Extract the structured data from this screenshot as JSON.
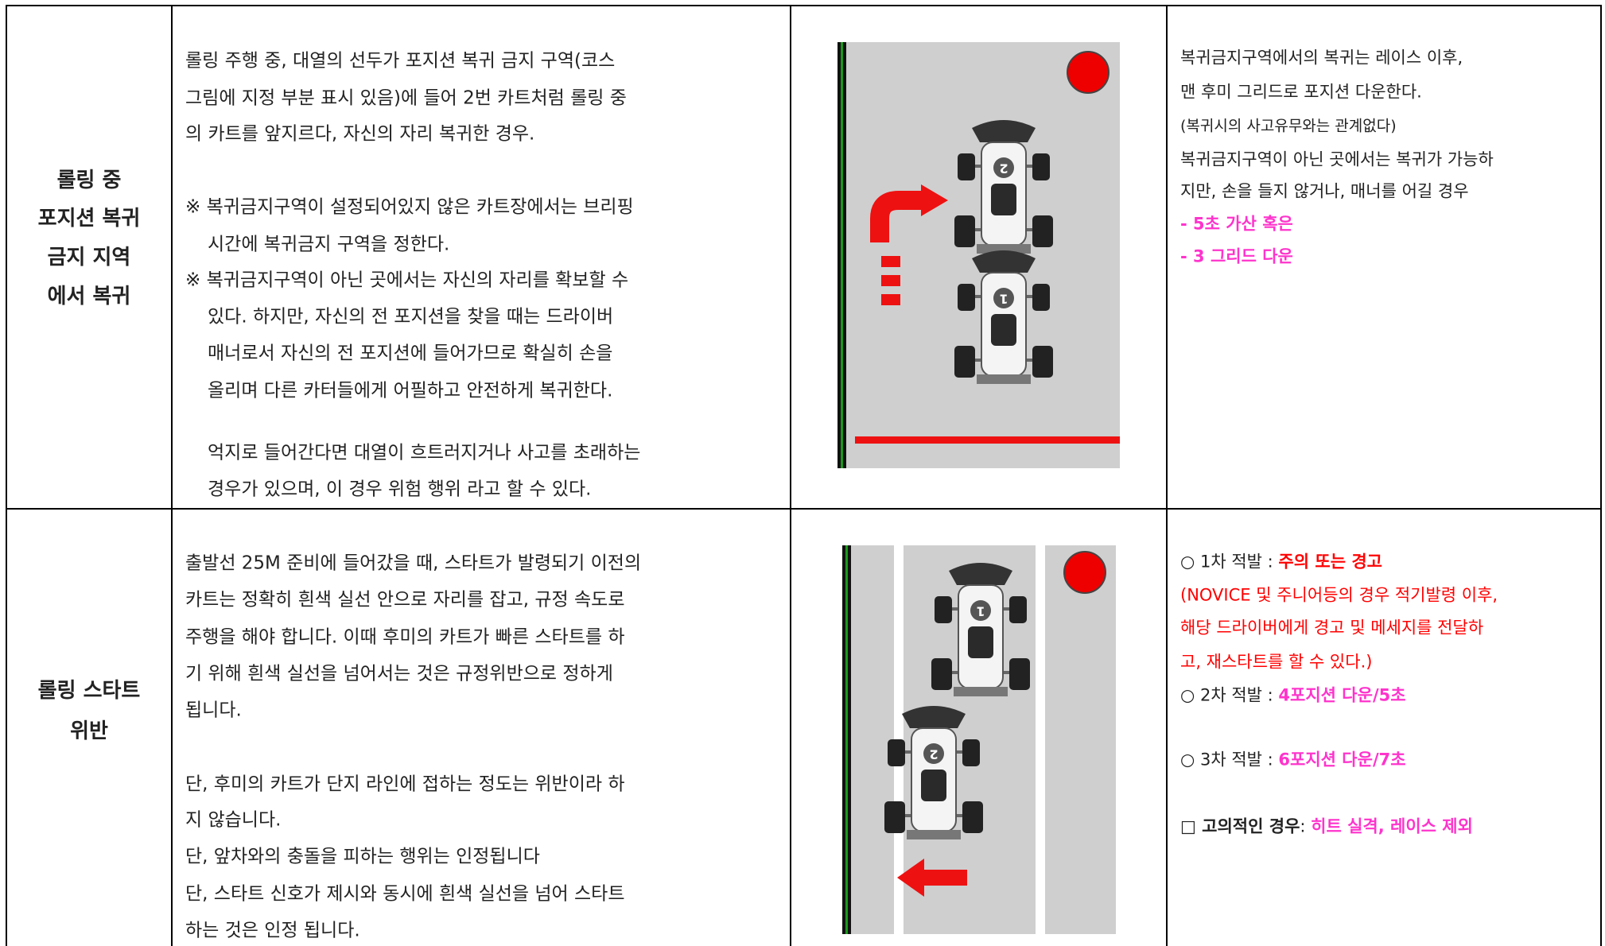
{
  "rows": [
    {
      "title": [
        "롤링 중",
        "포지션 복귀",
        "금지 지역",
        "에서 복귀"
      ],
      "description": [
        "롤링 주행 중, 대열의 선두가 포지션 복귀 금지 구역(코스",
        "그림에 지정 부분 표시 있음)에 들어 2번 카트처럼 롤링 중",
        "의 카트를 앞지르다, 자신의 자리 복귀한 경우.",
        "※ 복귀금지구역이 설정되어있지 않은 카트장에서는 브리핑",
        "시간에 복귀금지 구역을 정한다.",
        "※ 복귀금지구역이 아닌 곳에서는 자신의 자리를 확보할 수",
        "있다. 하지만, 자신의 전 포지션을 찾을 때는 드라이버",
        "매너로서 자신의 전 포지션에 들어가므로 확실히 손을",
        "올리며 다른 카터들에게 어필하고 안전하게 복귀한다.",
        "억지로 들어간다면 대열이 흐트러지거나 사고를 초래하는",
        "경우가 있으며, 이 경우 위험 행위 라고 할 수 있다."
      ],
      "karts": [
        "2",
        "1"
      ],
      "penalty": [
        [
          "복귀금지구역에서의 복귀는 레이스 이후,"
        ],
        [
          "맨 후미 그리드로 포지션 다운한다."
        ],
        [
          "(복귀시의 사고유무와는 관계없다)"
        ],
        [
          "복귀금지구역이 아닌 곳에서는 복귀가 가능하"
        ],
        [
          "지만, 손을 들지 않거나, 매너를 어길 경우"
        ],
        [
          "- 5초 가산 혹은"
        ],
        [
          "- 3 그리드 다운"
        ]
      ]
    },
    {
      "title": [
        "롤링 스타트",
        "위반"
      ],
      "description": [
        "출발선 25M 준비에 들어갔을 때, 스타트가 발령되기 이전의",
        "카트는 정확히 흰색 실선 안으로 자리를 잡고, 규정 속도로",
        "주행을 해야 합니다. 이때 후미의 카트가 빠른 스타트를 하",
        "기 위해 흰색 실선을 넘어서는 것은 규정위반으로 정하게",
        "됩니다.",
        "단, 후미의 카트가 단지 라인에 접하는 정도는 위반이라 하",
        "지 않습니다.",
        "단, 앞차와의 충돌을 피하는 행위는 인정됩니다",
        "단, 스타트 신호가 제시와 동시에 흰색 실선을 넘어 스타트",
        "하는 것은 인정 됩니다."
      ],
      "karts": [
        "1",
        "2"
      ],
      "penalty": [
        [
          "○ 1차 적발 : ",
          "주의 또는 경고"
        ],
        [
          "(NOVICE 및 주니어등의 경우 적기발령 이후,"
        ],
        [
          "해당 드라이버에게 경고 및 메세지를 전달하"
        ],
        [
          "고, 재스타트를 할 수 있다.)"
        ],
        [
          "○ 2차 적발 : ",
          "4포지션 다운/5초"
        ],
        [
          "○ 3차 적발 : ",
          "6포지션 다운/7초"
        ],
        [
          "□ 고의적인 경우",
          ": ",
          "히트 실격, 레이스 제외"
        ]
      ]
    }
  ]
}
